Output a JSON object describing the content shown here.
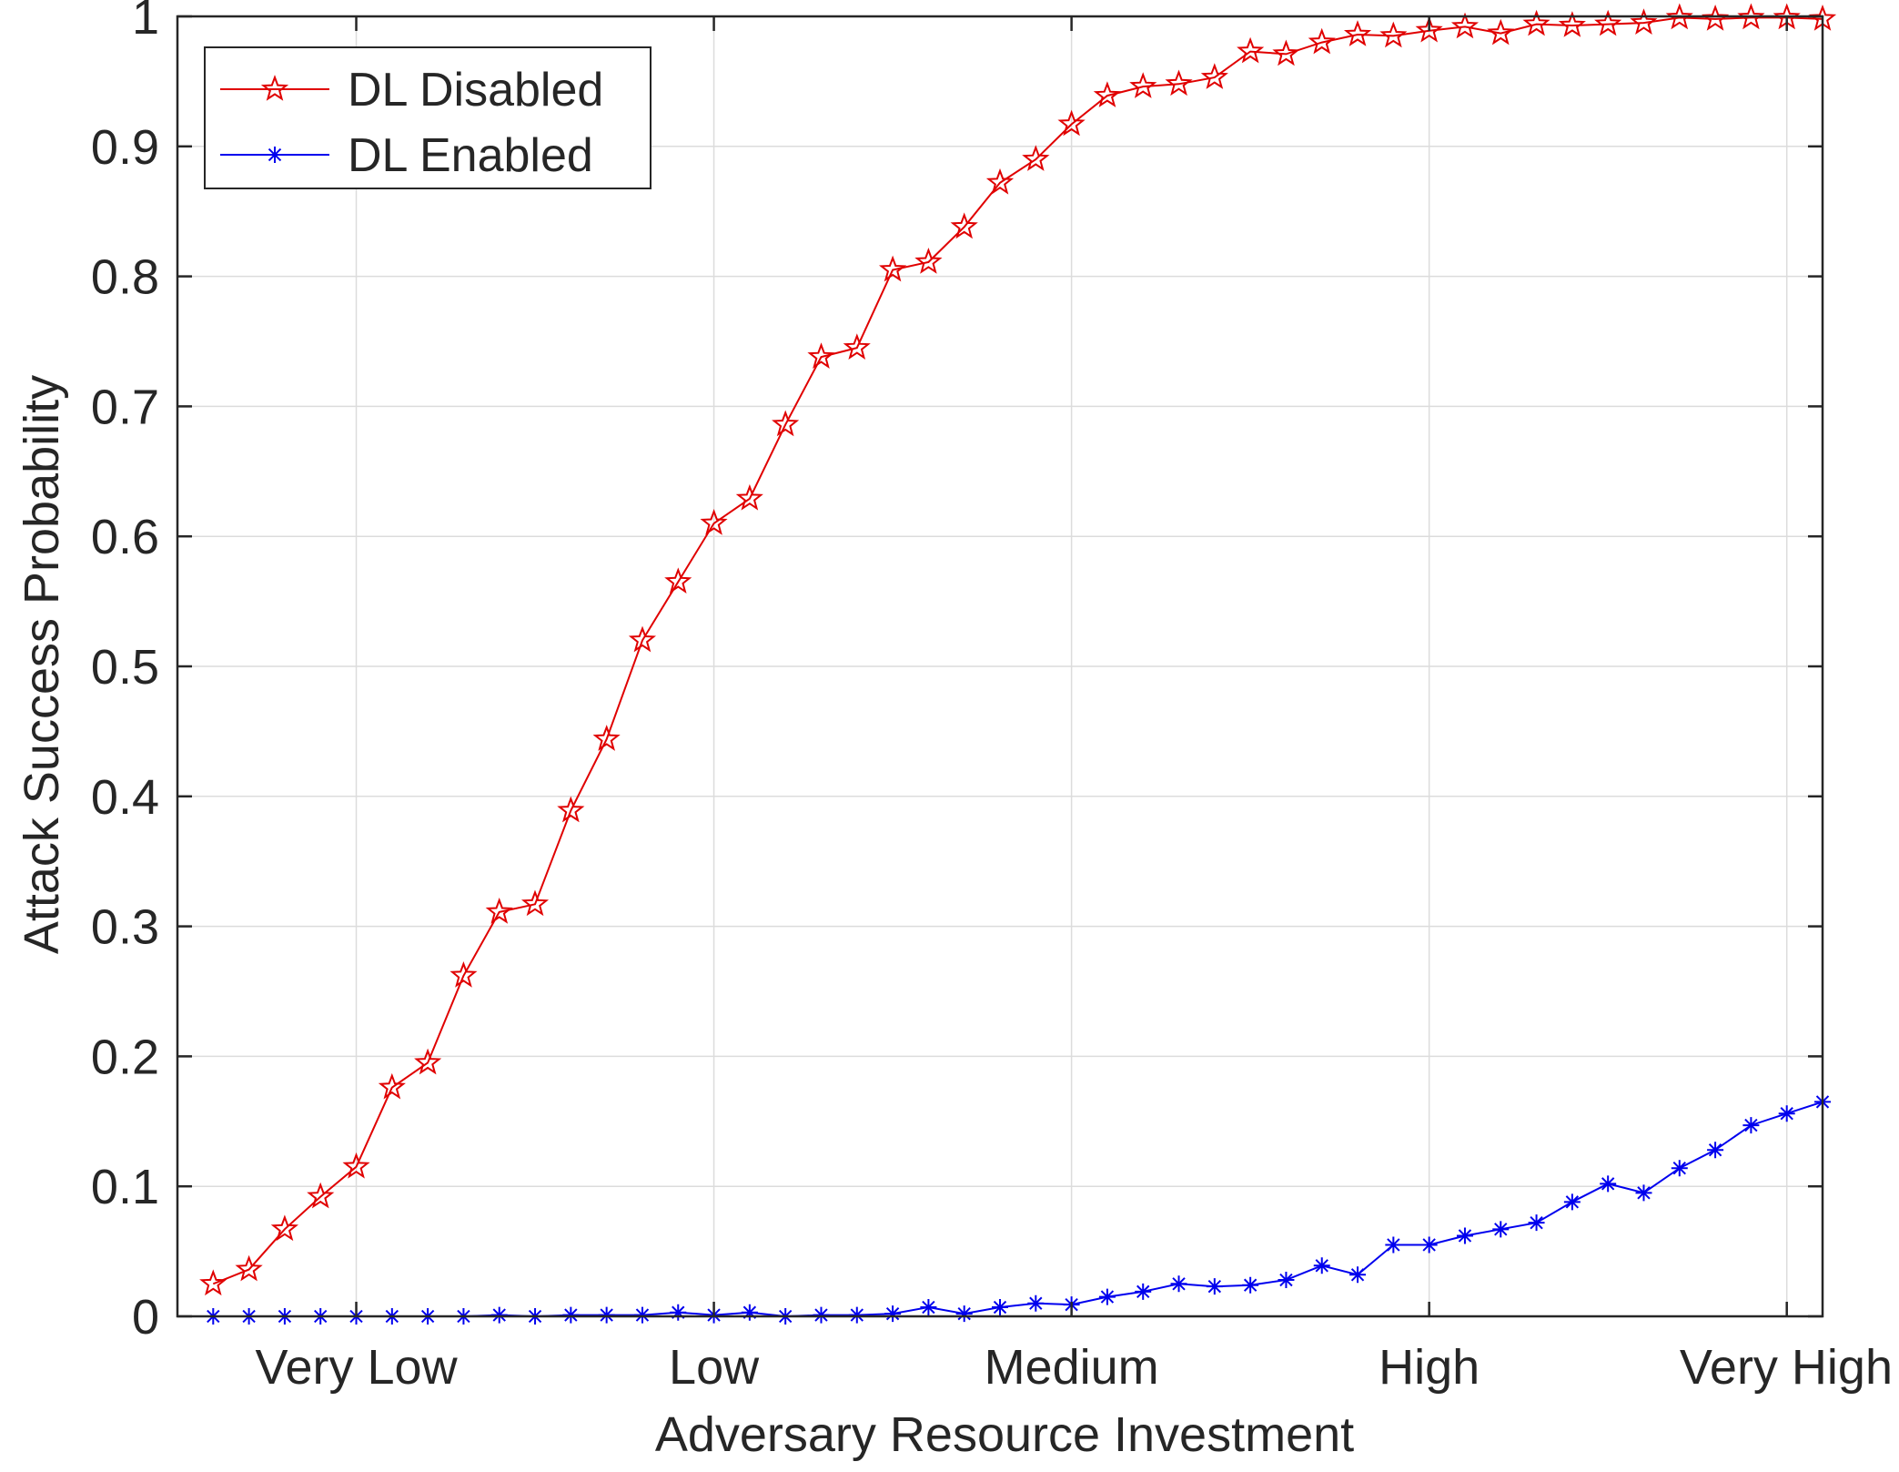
{
  "chart_data": {
    "type": "line",
    "title": "",
    "xlabel": "Adversary Resource Investment",
    "ylabel": "Attack Success Probability",
    "x_tick_labels": [
      "Very Low",
      "Low",
      "Medium",
      "High",
      "Very High"
    ],
    "x_tick_positions": [
      5,
      15,
      25,
      35,
      45
    ],
    "xlim": [
      0,
      46
    ],
    "ylim": [
      0,
      1
    ],
    "y_ticks": [
      0,
      0.1,
      0.2,
      0.3,
      0.4,
      0.5,
      0.6,
      0.7,
      0.8,
      0.9,
      1
    ],
    "y_tick_labels": [
      "0",
      "0.1",
      "0.2",
      "0.3",
      "0.4",
      "0.5",
      "0.6",
      "0.7",
      "0.8",
      "0.9",
      "1"
    ],
    "grid": true,
    "legend_position": "top-left",
    "x": [
      1,
      2,
      3,
      4,
      5,
      6,
      7,
      8,
      9,
      10,
      11,
      12,
      13,
      14,
      15,
      16,
      17,
      18,
      19,
      20,
      21,
      22,
      23,
      24,
      25,
      26,
      27,
      28,
      29,
      30,
      31,
      32,
      33,
      34,
      35,
      36,
      37,
      38,
      39,
      40,
      41,
      42,
      43,
      44,
      45,
      46
    ],
    "series": [
      {
        "name": "DL Disabled",
        "color": "#e00000",
        "marker": "star",
        "values": [
          0.025,
          0.036,
          0.067,
          0.092,
          0.115,
          0.176,
          0.195,
          0.262,
          0.311,
          0.317,
          0.389,
          0.444,
          0.52,
          0.565,
          0.61,
          0.629,
          0.686,
          0.738,
          0.745,
          0.805,
          0.811,
          0.838,
          0.872,
          0.89,
          0.917,
          0.939,
          0.946,
          0.948,
          0.953,
          0.973,
          0.971,
          0.98,
          0.986,
          0.985,
          0.989,
          0.992,
          0.987,
          0.994,
          0.993,
          0.994,
          0.995,
          0.999,
          0.998,
          0.999,
          0.999,
          0.998
        ]
      },
      {
        "name": "DL Enabled",
        "color": "#0000ee",
        "marker": "asterisk",
        "values": [
          0.0,
          0.0,
          0.0,
          0.0,
          0.0,
          0.0,
          0.0,
          0.0,
          0.001,
          0.0,
          0.001,
          0.001,
          0.001,
          0.003,
          0.001,
          0.003,
          0.0,
          0.001,
          0.001,
          0.002,
          0.007,
          0.002,
          0.007,
          0.01,
          0.009,
          0.015,
          0.019,
          0.025,
          0.023,
          0.024,
          0.028,
          0.039,
          0.032,
          0.055,
          0.055,
          0.062,
          0.067,
          0.072,
          0.088,
          0.102,
          0.095,
          0.114,
          0.128,
          0.147,
          0.156,
          0.165
        ]
      }
    ]
  }
}
